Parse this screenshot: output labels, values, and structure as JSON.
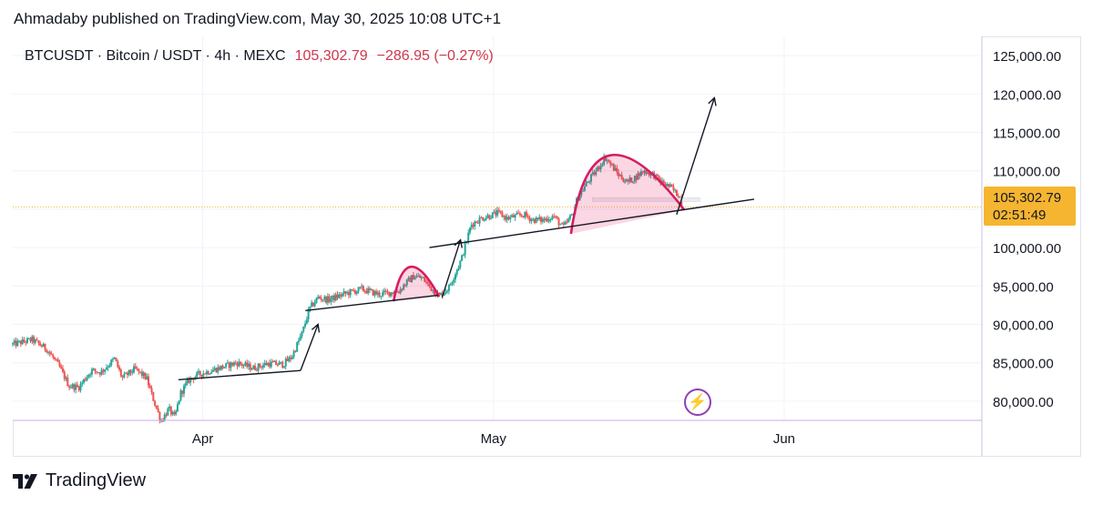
{
  "header": {
    "published_by": "Ahmadaby published on TradingView.com, May 30, 2025 10:08 UTC+1"
  },
  "legend": {
    "symbol_line": "BTCUSDT · Bitcoin / USDT · 4h · MEXC",
    "last_price": "105,302.79",
    "change": "−286.95 (−0.27%)"
  },
  "price_label": {
    "price": "105,302.79",
    "countdown": "02:51:49"
  },
  "footer": {
    "brand": "TradingView"
  },
  "chart_data": {
    "type": "candlestick",
    "symbol": "BTCUSDT",
    "interval": "4h",
    "exchange": "MEXC",
    "last_price": 105302.79,
    "y_ticks": [
      80000,
      85000,
      90000,
      95000,
      100000,
      105000,
      110000,
      115000,
      120000,
      125000
    ],
    "y_tick_labels": [
      "80,000.00",
      "85,000.00",
      "90,000.00",
      "95,000.00",
      "100,000.00",
      "105,000.00",
      "110,000.00",
      "115,000.00",
      "120,000.00",
      "125,000.00"
    ],
    "ylim": [
      77500,
      127500
    ],
    "x_ticks": [
      {
        "day": 19.6,
        "label": "Apr"
      },
      {
        "day": 49.6,
        "label": "May"
      },
      {
        "day": 79.6,
        "label": "Jun"
      }
    ],
    "xlim": [
      0,
      100
    ],
    "candle_interval_days": 0.1667,
    "path_keypoints": [
      [
        0,
        87400
      ],
      [
        2,
        88000
      ],
      [
        3.5,
        86800
      ],
      [
        4.8,
        84500
      ],
      [
        5.8,
        82000
      ],
      [
        6.8,
        81800
      ],
      [
        8.1,
        84000
      ],
      [
        9.1,
        83800
      ],
      [
        10.5,
        85500
      ],
      [
        11.3,
        83000
      ],
      [
        12.6,
        84200
      ],
      [
        13.8,
        83000
      ],
      [
        14.3,
        81000
      ],
      [
        15.3,
        77400
      ],
      [
        16.1,
        79000
      ],
      [
        16.7,
        77800
      ],
      [
        17.3,
        81000
      ],
      [
        18.2,
        82800
      ],
      [
        19.2,
        83500
      ],
      [
        21,
        84200
      ],
      [
        23.1,
        85000
      ],
      [
        24.8,
        84300
      ],
      [
        26.3,
        84900
      ],
      [
        27.9,
        84800
      ],
      [
        28.8,
        85800
      ],
      [
        29.9,
        89000
      ],
      [
        30.6,
        92000
      ],
      [
        31.5,
        93500
      ],
      [
        32.6,
        93200
      ],
      [
        34.3,
        94000
      ],
      [
        36,
        94600
      ],
      [
        37.8,
        93900
      ],
      [
        39.1,
        94200
      ],
      [
        39.8,
        94300
      ],
      [
        40.5,
        95300
      ],
      [
        41.4,
        96300
      ],
      [
        42.3,
        96000
      ],
      [
        43.1,
        94800
      ],
      [
        44,
        93700
      ],
      [
        45,
        94800
      ],
      [
        46.3,
        98500
      ],
      [
        47.3,
        103000
      ],
      [
        48.3,
        103800
      ],
      [
        50.1,
        104500
      ],
      [
        51,
        103800
      ],
      [
        52.7,
        104300
      ],
      [
        53.7,
        103600
      ],
      [
        54.8,
        103600
      ],
      [
        55.8,
        104100
      ],
      [
        56.8,
        102600
      ],
      [
        57.7,
        104200
      ],
      [
        58.3,
        106500
      ],
      [
        59.3,
        108500
      ],
      [
        60.5,
        110500
      ],
      [
        61.1,
        111800
      ],
      [
        62.5,
        109500
      ],
      [
        63.4,
        108500
      ],
      [
        64.3,
        109200
      ],
      [
        65.1,
        110000
      ],
      [
        66.1,
        109500
      ],
      [
        66.9,
        108500
      ],
      [
        67.9,
        107800
      ],
      [
        68.9,
        106500
      ],
      [
        69.1,
        105300
      ]
    ],
    "annotations": {
      "trendlines": [
        {
          "from": [
            17.1,
            82800
          ],
          "to": [
            29.7,
            84000
          ]
        },
        {
          "from": [
            30.2,
            91800
          ],
          "to": [
            43.9,
            93800
          ]
        },
        {
          "from": [
            43,
            100000
          ],
          "to": [
            76.5,
            106300
          ]
        }
      ],
      "arrows": [
        {
          "from": [
            29.7,
            84000
          ],
          "to": [
            31.5,
            90000
          ]
        },
        {
          "from": [
            44.3,
            93500
          ],
          "to": [
            46.2,
            101000
          ]
        },
        {
          "from": [
            68.5,
            104300
          ],
          "to": [
            72.4,
            119500
          ]
        }
      ],
      "cup_arcs": [
        {
          "from": [
            39.3,
            93000
          ],
          "peak": [
            41.1,
            97500
          ],
          "to": [
            44,
            93600
          ]
        },
        {
          "from": [
            57.6,
            101800
          ],
          "peak": [
            61.6,
            112000
          ],
          "to": [
            69.3,
            104900
          ]
        }
      ],
      "resistance_box": {
        "x": [
          59.8,
          70.9
        ],
        "y": [
          106000,
          106500
        ]
      }
    }
  }
}
